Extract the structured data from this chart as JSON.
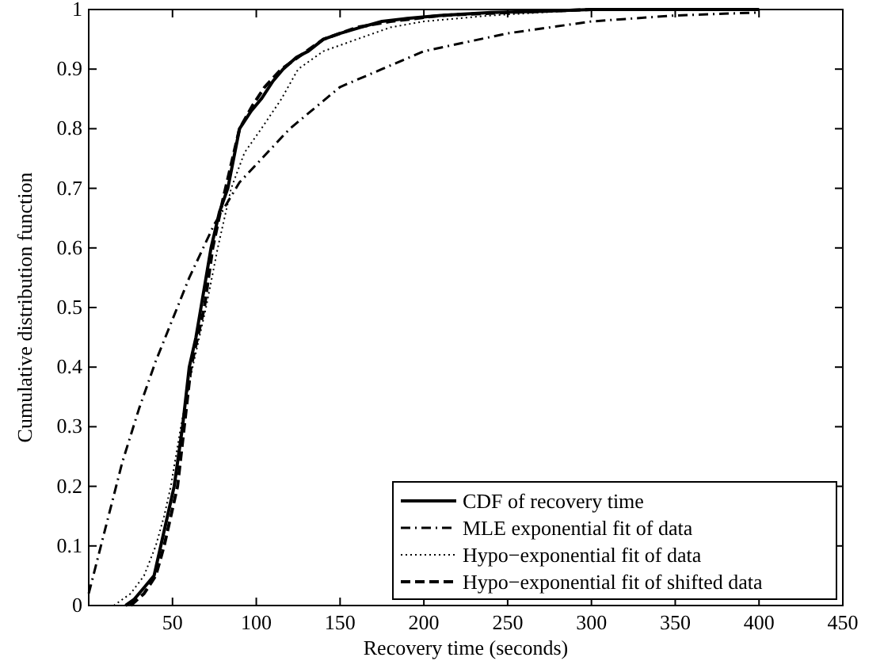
{
  "chart_data": {
    "type": "line",
    "xlabel": "Recovery time (seconds)",
    "ylabel": "Cumulative distribution function",
    "xlim": [
      0,
      450
    ],
    "ylim": [
      0,
      1
    ],
    "xticks": [
      50,
      100,
      150,
      200,
      250,
      300,
      350,
      400,
      450
    ],
    "yticks": [
      0,
      0.1,
      0.2,
      0.3,
      0.4,
      0.5,
      0.6,
      0.7,
      0.8,
      0.9,
      1
    ],
    "grid": false,
    "legend": "bottom right",
    "series": [
      {
        "name": "CDF of recovery time",
        "color": "#000000",
        "line_style": "solid",
        "x": [
          22,
          27,
          33,
          39,
          43,
          47,
          51,
          56,
          60,
          64,
          67,
          73,
          78,
          83,
          90,
          97,
          103,
          110,
          116,
          124,
          131,
          140,
          150,
          162,
          175,
          190,
          210,
          240,
          270,
          300,
          350,
          400
        ],
        "values": [
          0,
          0.01,
          0.03,
          0.05,
          0.1,
          0.15,
          0.2,
          0.3,
          0.4,
          0.45,
          0.5,
          0.6,
          0.66,
          0.7,
          0.8,
          0.83,
          0.85,
          0.88,
          0.9,
          0.92,
          0.93,
          0.95,
          0.96,
          0.97,
          0.98,
          0.985,
          0.99,
          0.995,
          0.997,
          1,
          1,
          1
        ]
      },
      {
        "name": "MLE exponential fit of data",
        "color": "#000000",
        "line_style": "dashdot",
        "x": [
          0,
          10,
          20,
          30,
          40,
          50,
          60,
          75,
          90,
          100,
          120,
          150,
          175,
          200,
          250,
          300,
          350,
          400
        ],
        "values": [
          0.02,
          0.13,
          0.24,
          0.33,
          0.41,
          0.48,
          0.55,
          0.64,
          0.71,
          0.74,
          0.8,
          0.87,
          0.9,
          0.93,
          0.96,
          0.98,
          0.99,
          0.995
        ]
      },
      {
        "name": "Hypo−exponential fit of data",
        "color": "#000000",
        "line_style": "dotted",
        "x": [
          15,
          25,
          33,
          40,
          45,
          49,
          55,
          62,
          70,
          77,
          85,
          93,
          103,
          115,
          125,
          140,
          160,
          180,
          200,
          240,
          300,
          400
        ],
        "values": [
          0,
          0.02,
          0.05,
          0.1,
          0.15,
          0.2,
          0.3,
          0.4,
          0.5,
          0.6,
          0.7,
          0.76,
          0.8,
          0.85,
          0.9,
          0.93,
          0.95,
          0.97,
          0.98,
          0.99,
          1,
          1
        ]
      },
      {
        "name": "Hypo−exponential fit of shifted data",
        "color": "#000000",
        "line_style": "dashed",
        "x": [
          25,
          33,
          40,
          45,
          49,
          53,
          57,
          61,
          65,
          69,
          74,
          80,
          85,
          90,
          98,
          105,
          115,
          125,
          140,
          160,
          180,
          210,
          250,
          300,
          400
        ],
        "values": [
          0,
          0.02,
          0.05,
          0.1,
          0.15,
          0.2,
          0.3,
          0.4,
          0.45,
          0.5,
          0.6,
          0.68,
          0.74,
          0.8,
          0.84,
          0.87,
          0.9,
          0.92,
          0.95,
          0.97,
          0.98,
          0.99,
          0.995,
          1,
          1
        ]
      }
    ]
  }
}
